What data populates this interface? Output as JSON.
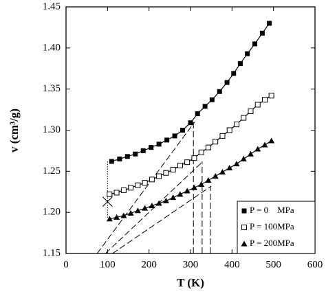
{
  "chart_data": {
    "type": "scatter-line",
    "xlabel": "T (K)",
    "ylabel": "v (cm³/g)",
    "xlim": [
      0,
      600
    ],
    "xticks": [
      0,
      100,
      200,
      300,
      400,
      500,
      600
    ],
    "ylim": [
      1.15,
      1.45
    ],
    "yticks": [
      1.15,
      {
        "value": 1.2,
        "label": "1.20"
      },
      1.25,
      {
        "value": 1.3,
        "label": "1.30"
      },
      1.35,
      {
        "value": 1.4,
        "label": "1.40"
      },
      1.45
    ],
    "legend": "lower right",
    "series": [
      {
        "name": "P = 0    MPa",
        "marker": "filled-square",
        "color": "#000000",
        "x": [
          110,
          129,
          148,
          167,
          186,
          205,
          224,
          243,
          262,
          281,
          300,
          317,
          335,
          352,
          370,
          388,
          404,
          420,
          437,
          455,
          473,
          490
        ],
        "values": [
          1.262,
          1.265,
          1.268,
          1.271,
          1.275,
          1.279,
          1.283,
          1.288,
          1.293,
          1.3,
          1.309,
          1.32,
          1.329,
          1.337,
          1.347,
          1.358,
          1.369,
          1.381,
          1.393,
          1.405,
          1.418,
          1.43
        ]
      },
      {
        "name": "P = 100MPa",
        "marker": "open-square",
        "color": "#000000",
        "x": [
          105,
          122,
          139,
          156,
          173,
          190,
          207,
          224,
          241,
          258,
          275,
          292,
          309,
          326,
          343,
          360,
          377,
          394,
          411,
          428,
          445,
          462,
          479,
          495
        ],
        "values": [
          1.222,
          1.224,
          1.227,
          1.23,
          1.233,
          1.236,
          1.24,
          1.244,
          1.248,
          1.252,
          1.257,
          1.261,
          1.266,
          1.273,
          1.279,
          1.286,
          1.293,
          1.3,
          1.307,
          1.315,
          1.323,
          1.331,
          1.337,
          1.342
        ]
      },
      {
        "name": "P = 200MPa",
        "marker": "filled-triangle",
        "color": "#000000",
        "x": [
          105,
          122,
          139,
          156,
          173,
          190,
          207,
          224,
          241,
          258,
          275,
          292,
          309,
          326,
          343,
          360,
          377,
          394,
          411,
          428,
          445,
          462,
          479,
          495
        ],
        "values": [
          1.192,
          1.194,
          1.196,
          1.199,
          1.202,
          1.205,
          1.208,
          1.211,
          1.214,
          1.218,
          1.222,
          1.226,
          1.23,
          1.234,
          1.239,
          1.244,
          1.249,
          1.254,
          1.259,
          1.265,
          1.271,
          1.277,
          1.282,
          1.287
        ]
      }
    ],
    "dashed_lines": [
      {
        "x": [
          75,
          310
        ],
        "values": [
          1.15,
          1.31
        ]
      },
      {
        "x": [
          95,
          330
        ],
        "values": [
          1.15,
          1.262
        ]
      },
      {
        "x": [
          112,
          350
        ],
        "values": [
          1.15,
          1.232
        ]
      },
      {
        "x": [
          307,
          307
        ],
        "values": [
          1.15,
          1.31
        ]
      },
      {
        "x": [
          328,
          328
        ],
        "values": [
          1.15,
          1.262
        ]
      },
      {
        "x": [
          348,
          348
        ],
        "values": [
          1.15,
          1.232
        ]
      }
    ],
    "dotted_lines": [
      {
        "x": [
          100,
          100
        ],
        "values": [
          1.262,
          1.192
        ]
      }
    ],
    "cross_markers": [
      {
        "x": 100,
        "value": 1.213
      }
    ]
  }
}
